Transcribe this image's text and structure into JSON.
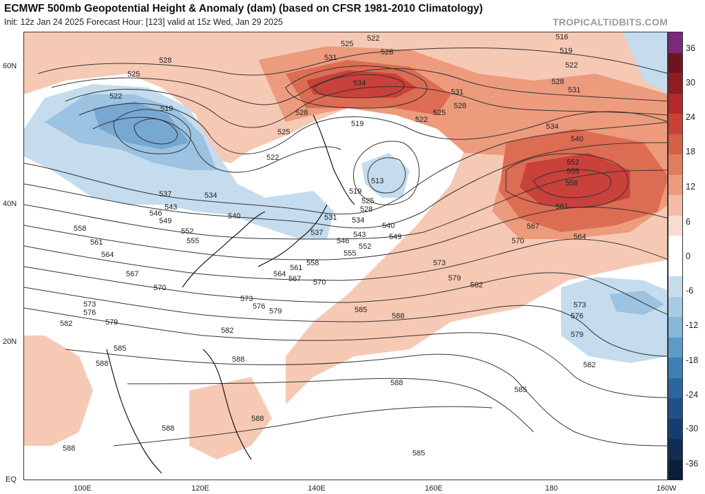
{
  "header": {
    "title": "ECMWF 500mb Geopotential Height & Anomaly (dam) (based on CFSR 1981-2010 Climatology)",
    "subtitle": "Init: 12z Jan 24 2025   Forecast Hour: [123]   valid at 15z Wed, Jan 29 2025",
    "brand": "TROPICALTIDBITS.COM"
  },
  "axes": {
    "lat_labels": [
      "60N",
      "40N",
      "20N",
      "EQ"
    ],
    "lon_labels": [
      "100E",
      "120E",
      "140E",
      "160E",
      "180",
      "160W"
    ]
  },
  "colorbar": {
    "labels": [
      "36",
      "30",
      "24",
      "18",
      "12",
      "6",
      "0",
      "-6",
      "-12",
      "-18",
      "-24",
      "-30",
      "-36"
    ],
    "colors": [
      "#7a2a78",
      "#6e1420",
      "#8f1c1f",
      "#b22a2a",
      "#c84238",
      "#d65f47",
      "#e07d5f",
      "#eb9c80",
      "#f3bca6",
      "#f9dccf",
      "#ffffff",
      "#ffffff",
      "#c5dcec",
      "#a7cbe3",
      "#86b6d8",
      "#5f9bc7",
      "#3f7fb4",
      "#2c65a0",
      "#1f4f87",
      "#163d6e",
      "#102d55",
      "#0b1f3d"
    ]
  },
  "anomaly_colors": {
    "red_light": "#f6c9b5",
    "red_mid": "#ec9b7d",
    "red_strong": "#dc6c52",
    "red_deep": "#c8413a",
    "blue_light": "#c4dced",
    "blue_mid": "#9cc3e1",
    "blue_strong": "#76a8d2"
  },
  "contour_labels": {
    "c516": "516",
    "c519a": "519",
    "c519b": "519",
    "c519c": "519",
    "c519d": "519",
    "c522a": "522",
    "c522b": "522",
    "c522c": "522",
    "c522d": "522",
    "c522e": "522",
    "c525a": "525",
    "c525b": "525",
    "c525c": "525",
    "c525d": "525",
    "c525e": "525",
    "c528a": "528",
    "c528b": "528",
    "c528c": "528",
    "c528d": "528",
    "c528e": "528",
    "c528f": "528",
    "c531a": "531",
    "c531b": "531",
    "c531c": "531",
    "c531d": "531",
    "c534a": "534",
    "c534b": "534",
    "c534c": "534",
    "c534d": "534",
    "c537a": "537",
    "c537b": "537",
    "c540a": "540",
    "c540b": "540",
    "c540c": "540",
    "c543a": "543",
    "c543b": "543",
    "c546a": "546",
    "c546b": "546",
    "c549a": "549",
    "c549b": "549",
    "c552a": "552",
    "c552b": "552",
    "c552c": "552",
    "c555a": "555",
    "c555b": "555",
    "c555c": "555",
    "c558a": "558",
    "c558b": "558",
    "c558c": "558",
    "c561a": "561",
    "c561b": "561",
    "c561c": "561",
    "c564a": "564",
    "c564b": "564",
    "c564c": "564",
    "c567a": "567",
    "c567b": "567",
    "c567c": "567",
    "c570a": "570",
    "c570b": "570",
    "c570c": "570",
    "c573a": "573",
    "c573b": "573",
    "c573c": "573",
    "c573d": "573",
    "c576a": "576",
    "c576b": "576",
    "c576c": "576",
    "c579a": "579",
    "c579b": "579",
    "c579c": "579",
    "c579d": "579",
    "c582a": "582",
    "c582b": "582",
    "c582c": "582",
    "c582d": "582",
    "c585a": "585",
    "c585b": "585",
    "c585c": "585",
    "c585d": "585",
    "c588a": "588",
    "c588b": "588",
    "c588c": "588",
    "c588d": "588",
    "c588e": "588",
    "c588f": "588",
    "c588g": "588",
    "c513": "513"
  }
}
